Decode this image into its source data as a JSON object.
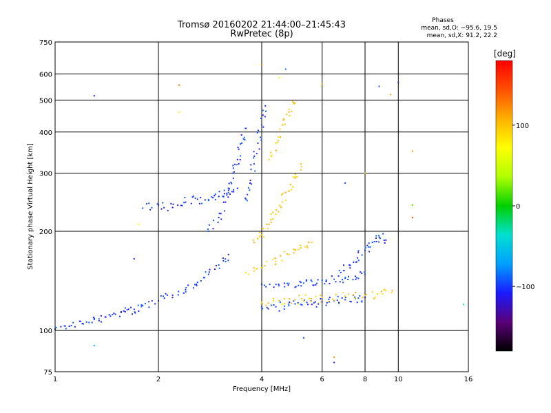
{
  "chart_data": {
    "type": "scatter",
    "title": "Tromsø 20160202 21:44:00–21:45:43",
    "subtitle": "RwPretec (8p)",
    "xlabel": "Frequency [MHz]",
    "ylabel": "Stationary phase Virtual Height [km]",
    "x_scale": "log",
    "y_scale": "log",
    "xlim": [
      1,
      16
    ],
    "ylim": [
      75,
      750
    ],
    "x_ticks": [
      1,
      2,
      4,
      6,
      8,
      10,
      16
    ],
    "x_tick_labels": [
      "1",
      "2",
      "4",
      "6",
      "8",
      "10",
      "16"
    ],
    "y_ticks": [
      75,
      100,
      200,
      300,
      400,
      500,
      600,
      750
    ],
    "y_tick_labels": [
      "75",
      "100",
      "200",
      "300",
      "400",
      "500",
      "600",
      "750"
    ],
    "grid": true,
    "stats": {
      "heading": "Phases",
      "o_line": "mean, sd,O: −95.6, 19.5",
      "x_line": "mean, sd,X:  91.2, 22.2"
    },
    "colorbar": {
      "label": "[deg]",
      "min": -180,
      "max": 180,
      "ticks": [
        100,
        0,
        -100
      ],
      "tick_labels": [
        "100",
        "0",
        "−100"
      ],
      "colors": [
        "#000000",
        "#5a0078",
        "#1a1aff",
        "#00a0ff",
        "#00e0d0",
        "#00d000",
        "#b0ff00",
        "#ffff00",
        "#ffb000",
        "#ff5000",
        "#ff0000"
      ]
    },
    "traces": [
      {
        "name": "",
        "phase": -100,
        "x": [
          1.0,
          1.1,
          1.2,
          1.3,
          1.4,
          1.5,
          1.6,
          1.7,
          1.8,
          2.0,
          2.2,
          2.4,
          2.6,
          2.8,
          3.0,
          3.2
        ],
        "y": [
          101,
          103,
          105,
          108,
          110,
          112,
          114,
          116,
          119,
          123,
          128,
          133,
          140,
          148,
          158,
          170
        ]
      },
      {
        "name": "",
        "phase": -100,
        "x": [
          1.8,
          2.0,
          2.2,
          2.4,
          2.6,
          2.8,
          3.0,
          3.2,
          3.4
        ],
        "y": [
          235,
          240,
          236,
          245,
          250,
          248,
          255,
          262,
          270
        ]
      },
      {
        "name": "",
        "phase": -100,
        "x": [
          2.8,
          3.0,
          3.1,
          3.2,
          3.3,
          3.4,
          3.5,
          3.6
        ],
        "y": [
          200,
          220,
          245,
          270,
          300,
          330,
          370,
          410
        ]
      },
      {
        "name": "",
        "phase": -100,
        "x": [
          3.6,
          3.7,
          3.8,
          3.9,
          4.0,
          4.1
        ],
        "y": [
          250,
          280,
          320,
          370,
          420,
          480
        ]
      },
      {
        "name": "",
        "phase": -100,
        "x": [
          4.0,
          4.4,
          4.8,
          5.2,
          5.6,
          6.0,
          6.5,
          7.0,
          7.5,
          8.0
        ],
        "y": [
          118,
          118,
          119,
          120,
          120,
          122,
          123,
          124,
          125,
          126
        ]
      },
      {
        "name": "",
        "phase": -100,
        "x": [
          4.0,
          4.4,
          4.8,
          5.2,
          5.6,
          6.0,
          6.5,
          7.0,
          7.5,
          8.0
        ],
        "y": [
          138,
          138,
          139,
          140,
          141,
          142,
          143,
          144,
          146,
          148
        ]
      },
      {
        "name": "",
        "phase": -100,
        "x": [
          6.8,
          7.2,
          7.6,
          8.0,
          8.4,
          8.8,
          9.2
        ],
        "y": [
          150,
          158,
          166,
          175,
          185,
          192,
          188
        ]
      },
      {
        "name": "",
        "phase": 100,
        "x": [
          3.8,
          4.0,
          4.2,
          4.4,
          4.6,
          4.8,
          5.0,
          5.2
        ],
        "y": [
          185,
          195,
          210,
          225,
          245,
          265,
          290,
          320
        ]
      },
      {
        "name": "",
        "phase": 100,
        "x": [
          4.2,
          4.4,
          4.6,
          4.8,
          5.0
        ],
        "y": [
          330,
          370,
          420,
          460,
          490
        ]
      },
      {
        "name": "",
        "phase": 100,
        "x": [
          4.0,
          4.5,
          5.0,
          5.5,
          6.0,
          7.0,
          8.0,
          9.0,
          9.6
        ],
        "y": [
          122,
          123,
          124,
          125,
          126,
          127,
          128,
          129,
          132
        ]
      },
      {
        "name": "",
        "phase": 100,
        "x": [
          3.6,
          4.0,
          4.4,
          4.8,
          5.2,
          5.6
        ],
        "y": [
          150,
          155,
          162,
          170,
          178,
          185
        ]
      }
    ],
    "outliers": [
      {
        "x": 1.3,
        "y": 515,
        "phase": -100
      },
      {
        "x": 2.3,
        "y": 555,
        "phase": 130
      },
      {
        "x": 2.3,
        "y": 460,
        "phase": 80
      },
      {
        "x": 4.7,
        "y": 620,
        "phase": -100
      },
      {
        "x": 4.5,
        "y": 585,
        "phase": 80
      },
      {
        "x": 4.0,
        "y": 640,
        "phase": 140
      },
      {
        "x": 8.8,
        "y": 550,
        "phase": -100
      },
      {
        "x": 10.0,
        "y": 565,
        "phase": -100
      },
      {
        "x": 9.5,
        "y": 520,
        "phase": 130
      },
      {
        "x": 6.0,
        "y": 560,
        "phase": 100
      },
      {
        "x": 11.0,
        "y": 350,
        "phase": 130
      },
      {
        "x": 11.0,
        "y": 240,
        "phase": 20
      },
      {
        "x": 11.0,
        "y": 220,
        "phase": 140
      },
      {
        "x": 15.5,
        "y": 120,
        "phase": -40
      },
      {
        "x": 1.3,
        "y": 90,
        "phase": -60
      },
      {
        "x": 1.75,
        "y": 210,
        "phase": 60
      },
      {
        "x": 6.5,
        "y": 83,
        "phase": 130
      },
      {
        "x": 6.5,
        "y": 80,
        "phase": -100
      },
      {
        "x": 5.3,
        "y": 95,
        "phase": -100
      },
      {
        "x": 7.0,
        "y": 280,
        "phase": -100
      },
      {
        "x": 8.0,
        "y": 300,
        "phase": 100
      },
      {
        "x": 1.7,
        "y": 165,
        "phase": -100
      }
    ]
  }
}
